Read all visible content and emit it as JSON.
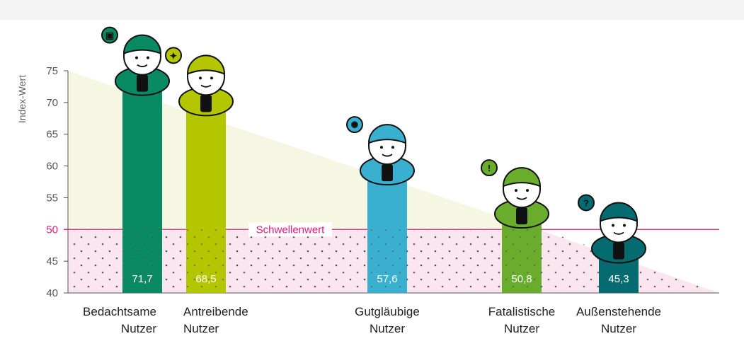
{
  "chart_data": {
    "type": "bar",
    "ylabel": "Index-Wert",
    "ylim": [
      40,
      75
    ],
    "yticks": [
      40,
      45,
      50,
      55,
      60,
      65,
      70,
      75
    ],
    "threshold": {
      "value": 50,
      "label": "Schwellenwert"
    },
    "categories": [
      {
        "line1": "Bedachtsame",
        "line2": "Nutzer",
        "value": 71.7,
        "value_label": "71,7",
        "color": "#0a8a63",
        "icon": "lock-icon"
      },
      {
        "line1": "Antreibende",
        "line2": "Nutzer",
        "value": 68.5,
        "value_label": "68,5",
        "color": "#b4c600",
        "icon": "lightbulb-icon"
      },
      {
        "line1": "Gutgläubige",
        "line2": "Nutzer",
        "value": 57.6,
        "value_label": "57,6",
        "color": "#3ab0d0",
        "icon": "sun-icon"
      },
      {
        "line1": "Fatalistische",
        "line2": "Nutzer",
        "value": 50.8,
        "value_label": "50,8",
        "color": "#6aad2d",
        "icon": "exclamation-icon"
      },
      {
        "line1": "Außenstehende",
        "line2": "Nutzer",
        "value": 45.3,
        "value_label": "45,3",
        "color": "#046b70",
        "icon": "question-icon"
      }
    ],
    "colors": {
      "threshold": "#e5197e",
      "grid_below": "#fbe6ef",
      "area_above": "#f5f7e3",
      "axis": "#555555"
    }
  }
}
